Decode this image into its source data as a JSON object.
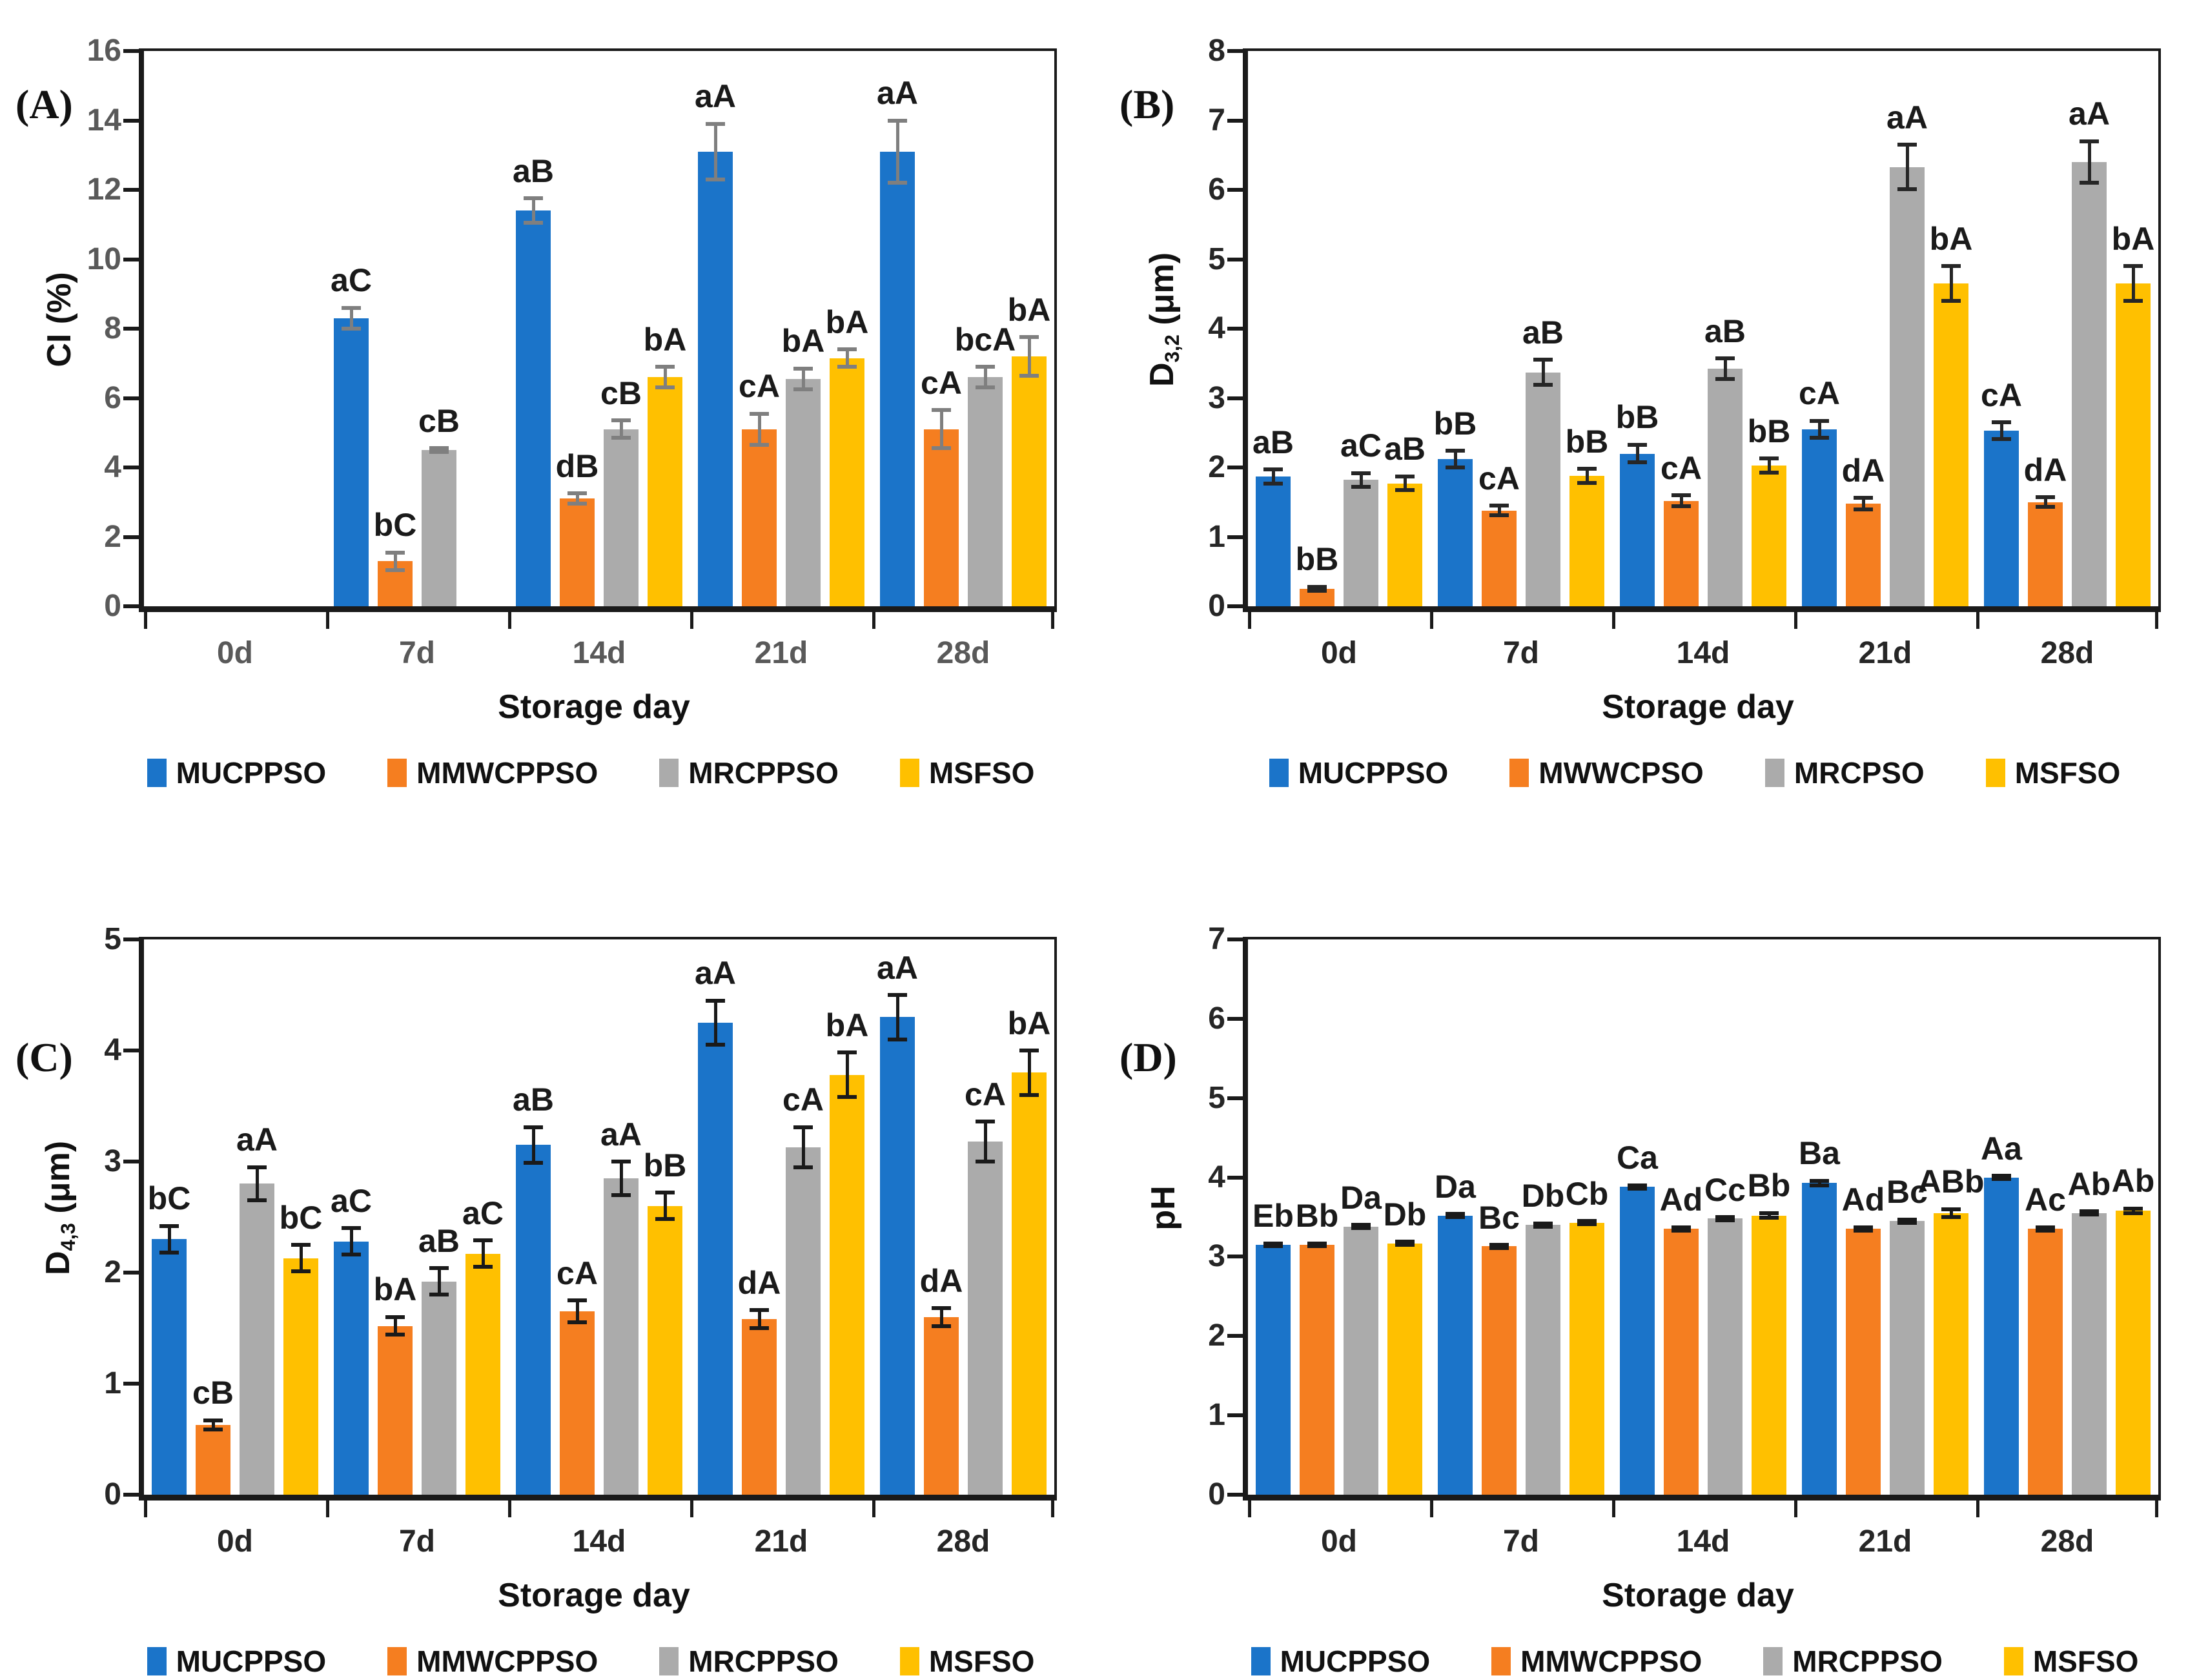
{
  "figure": {
    "background": "#ffffff",
    "x_axis_title": "Storage day",
    "storage_days": [
      "0d",
      "7d",
      "14d",
      "21d",
      "28d"
    ]
  },
  "chart_data": [
    {
      "type": "bar",
      "panel": "(A)",
      "ylabel_parts": [
        {
          "t": "CI (%)"
        }
      ],
      "xlabel": "Storage day",
      "categories": [
        "0d",
        "7d",
        "14d",
        "21d",
        "28d"
      ],
      "ylim": [
        0,
        16
      ],
      "ytick": 2,
      "grid": false,
      "legend_position": "bottom",
      "tick_color": "#595959",
      "errbar_color": "#7f7f7f",
      "series": [
        {
          "name": "MUCPPSO",
          "color": "#1B74C9",
          "values": [
            0,
            8.3,
            11.4,
            13.1,
            13.1
          ],
          "errors": [
            0,
            0.3,
            0.35,
            0.8,
            0.9
          ],
          "labels": [
            "",
            "aC",
            "aB",
            "aA",
            "aA"
          ]
        },
        {
          "name": "MMWCPPSO",
          "color": "#F57E20",
          "values": [
            0,
            1.3,
            3.1,
            5.1,
            5.1
          ],
          "errors": [
            0,
            0.25,
            0.15,
            0.45,
            0.55
          ],
          "labels": [
            "",
            "bC",
            "dB",
            "cA",
            "cA"
          ]
        },
        {
          "name": "MRCPPSO",
          "color": "#ABABAB",
          "values": [
            0,
            4.5,
            5.1,
            6.55,
            6.6
          ],
          "errors": [
            0,
            0.05,
            0.25,
            0.3,
            0.3
          ],
          "labels": [
            "",
            "cB",
            "cB",
            "bA",
            "bcA"
          ]
        },
        {
          "name": "MSFSO",
          "color": "#FFC000",
          "values": [
            0,
            0,
            6.6,
            7.15,
            7.2
          ],
          "errors": [
            0,
            0,
            0.3,
            0.25,
            0.55
          ],
          "labels": [
            "",
            "",
            "bA",
            "bA",
            "bA"
          ]
        }
      ]
    },
    {
      "type": "bar",
      "panel": "(B)",
      "ylabel_parts": [
        {
          "t": "D"
        },
        {
          "t": "3,2",
          "sub": true
        },
        {
          "t": " (μm)"
        }
      ],
      "xlabel": "Storage day",
      "categories": [
        "0d",
        "7d",
        "14d",
        "21d",
        "28d"
      ],
      "ylim": [
        0,
        8
      ],
      "ytick": 1,
      "grid": false,
      "legend_position": "bottom",
      "tick_color": "#262626",
      "errbar_color": "#262626",
      "series": [
        {
          "name": "MUCPPSO",
          "color": "#1B74C9",
          "values": [
            1.87,
            2.12,
            2.2,
            2.55,
            2.53
          ],
          "errors": [
            0.1,
            0.12,
            0.13,
            0.12,
            0.12
          ],
          "labels": [
            "aB",
            "bB",
            "bB",
            "cA",
            "cA"
          ]
        },
        {
          "name": "MWWCPSO",
          "color": "#F57E20",
          "values": [
            0.25,
            1.38,
            1.52,
            1.48,
            1.5
          ],
          "errors": [
            0.03,
            0.07,
            0.08,
            0.08,
            0.07
          ],
          "labels": [
            "bB",
            "cA",
            "cA",
            "dA",
            "dA"
          ]
        },
        {
          "name": "MRCPSO",
          "color": "#ABABAB",
          "values": [
            1.82,
            3.37,
            3.42,
            6.33,
            6.4
          ],
          "errors": [
            0.1,
            0.18,
            0.15,
            0.32,
            0.3
          ],
          "labels": [
            "aC",
            "aB",
            "aB",
            "aA",
            "aA"
          ]
        },
        {
          "name": "MSFSO",
          "color": "#FFC000",
          "values": [
            1.77,
            1.88,
            2.03,
            4.65,
            4.65
          ],
          "errors": [
            0.1,
            0.1,
            0.1,
            0.25,
            0.25
          ],
          "labels": [
            "aB",
            "bB",
            "bB",
            "bA",
            "bA"
          ]
        }
      ]
    },
    {
      "type": "bar",
      "panel": "(C)",
      "ylabel_parts": [
        {
          "t": "D"
        },
        {
          "t": "4,3",
          "sub": true
        },
        {
          "t": " (μm)"
        }
      ],
      "xlabel": "Storage day",
      "categories": [
        "0d",
        "7d",
        "14d",
        "21d",
        "28d"
      ],
      "ylim": [
        0,
        5
      ],
      "ytick": 1,
      "grid": false,
      "legend_position": "bottom",
      "tick_color": "#262626",
      "errbar_color": "#1a1a1a",
      "series": [
        {
          "name": "MUCPPSO",
          "color": "#1B74C9",
          "values": [
            2.3,
            2.28,
            3.15,
            4.25,
            4.3
          ],
          "errors": [
            0.12,
            0.12,
            0.16,
            0.2,
            0.2
          ],
          "labels": [
            "bC",
            "aC",
            "aB",
            "aA",
            "aA"
          ]
        },
        {
          "name": "MMWCPPSO",
          "color": "#F57E20",
          "values": [
            0.63,
            1.52,
            1.65,
            1.58,
            1.6
          ],
          "errors": [
            0.04,
            0.08,
            0.1,
            0.08,
            0.08
          ],
          "labels": [
            "cB",
            "bA",
            "cA",
            "dA",
            "dA"
          ]
        },
        {
          "name": "MRCPPSO",
          "color": "#ABABAB",
          "values": [
            2.8,
            1.92,
            2.85,
            3.13,
            3.18
          ],
          "errors": [
            0.15,
            0.12,
            0.15,
            0.18,
            0.18
          ],
          "labels": [
            "aA",
            "aB",
            "aA",
            "cA",
            "cA"
          ]
        },
        {
          "name": "MSFSO",
          "color": "#FFC000",
          "values": [
            2.13,
            2.17,
            2.6,
            3.78,
            3.8
          ],
          "errors": [
            0.12,
            0.12,
            0.12,
            0.2,
            0.2
          ],
          "labels": [
            "bC",
            "aC",
            "bB",
            "bA",
            "bA"
          ]
        }
      ]
    },
    {
      "type": "bar",
      "panel": "(D)",
      "ylabel_parts": [
        {
          "t": "pH"
        }
      ],
      "xlabel": "Storage day",
      "categories": [
        "0d",
        "7d",
        "14d",
        "21d",
        "28d"
      ],
      "ylim": [
        0,
        7
      ],
      "ytick": 1,
      "grid": false,
      "legend_position": "bottom",
      "tick_color": "#262626",
      "errbar_color": "#1a1a1a",
      "series": [
        {
          "name": "MUCPPSO",
          "color": "#1B74C9",
          "values": [
            3.15,
            3.52,
            3.88,
            3.93,
            4.0
          ],
          "errors": [
            0.02,
            0.02,
            0.02,
            0.03,
            0.02
          ],
          "labels": [
            "Eb",
            "Da",
            "Ca",
            "Ba",
            "Aa"
          ]
        },
        {
          "name": "MMWCPPSO",
          "color": "#F57E20",
          "values": [
            3.15,
            3.13,
            3.35,
            3.35,
            3.35
          ],
          "errors": [
            0.02,
            0.02,
            0.02,
            0.02,
            0.02
          ],
          "labels": [
            "Bb",
            "Bc",
            "Ad",
            "Ad",
            "Ac"
          ]
        },
        {
          "name": "MRCPPSO",
          "color": "#ABABAB",
          "values": [
            3.38,
            3.4,
            3.48,
            3.45,
            3.55
          ],
          "errors": [
            0.02,
            0.02,
            0.02,
            0.02,
            0.02
          ],
          "labels": [
            "Da",
            "Db",
            "Cc",
            "Bc",
            "Ab"
          ]
        },
        {
          "name": "MSFSO",
          "color": "#FFC000",
          "values": [
            3.17,
            3.43,
            3.52,
            3.55,
            3.58
          ],
          "errors": [
            0.02,
            0.02,
            0.03,
            0.05,
            0.03
          ],
          "labels": [
            "Db",
            "Cb",
            "Bb",
            "ABb",
            "Ab"
          ]
        }
      ]
    }
  ]
}
